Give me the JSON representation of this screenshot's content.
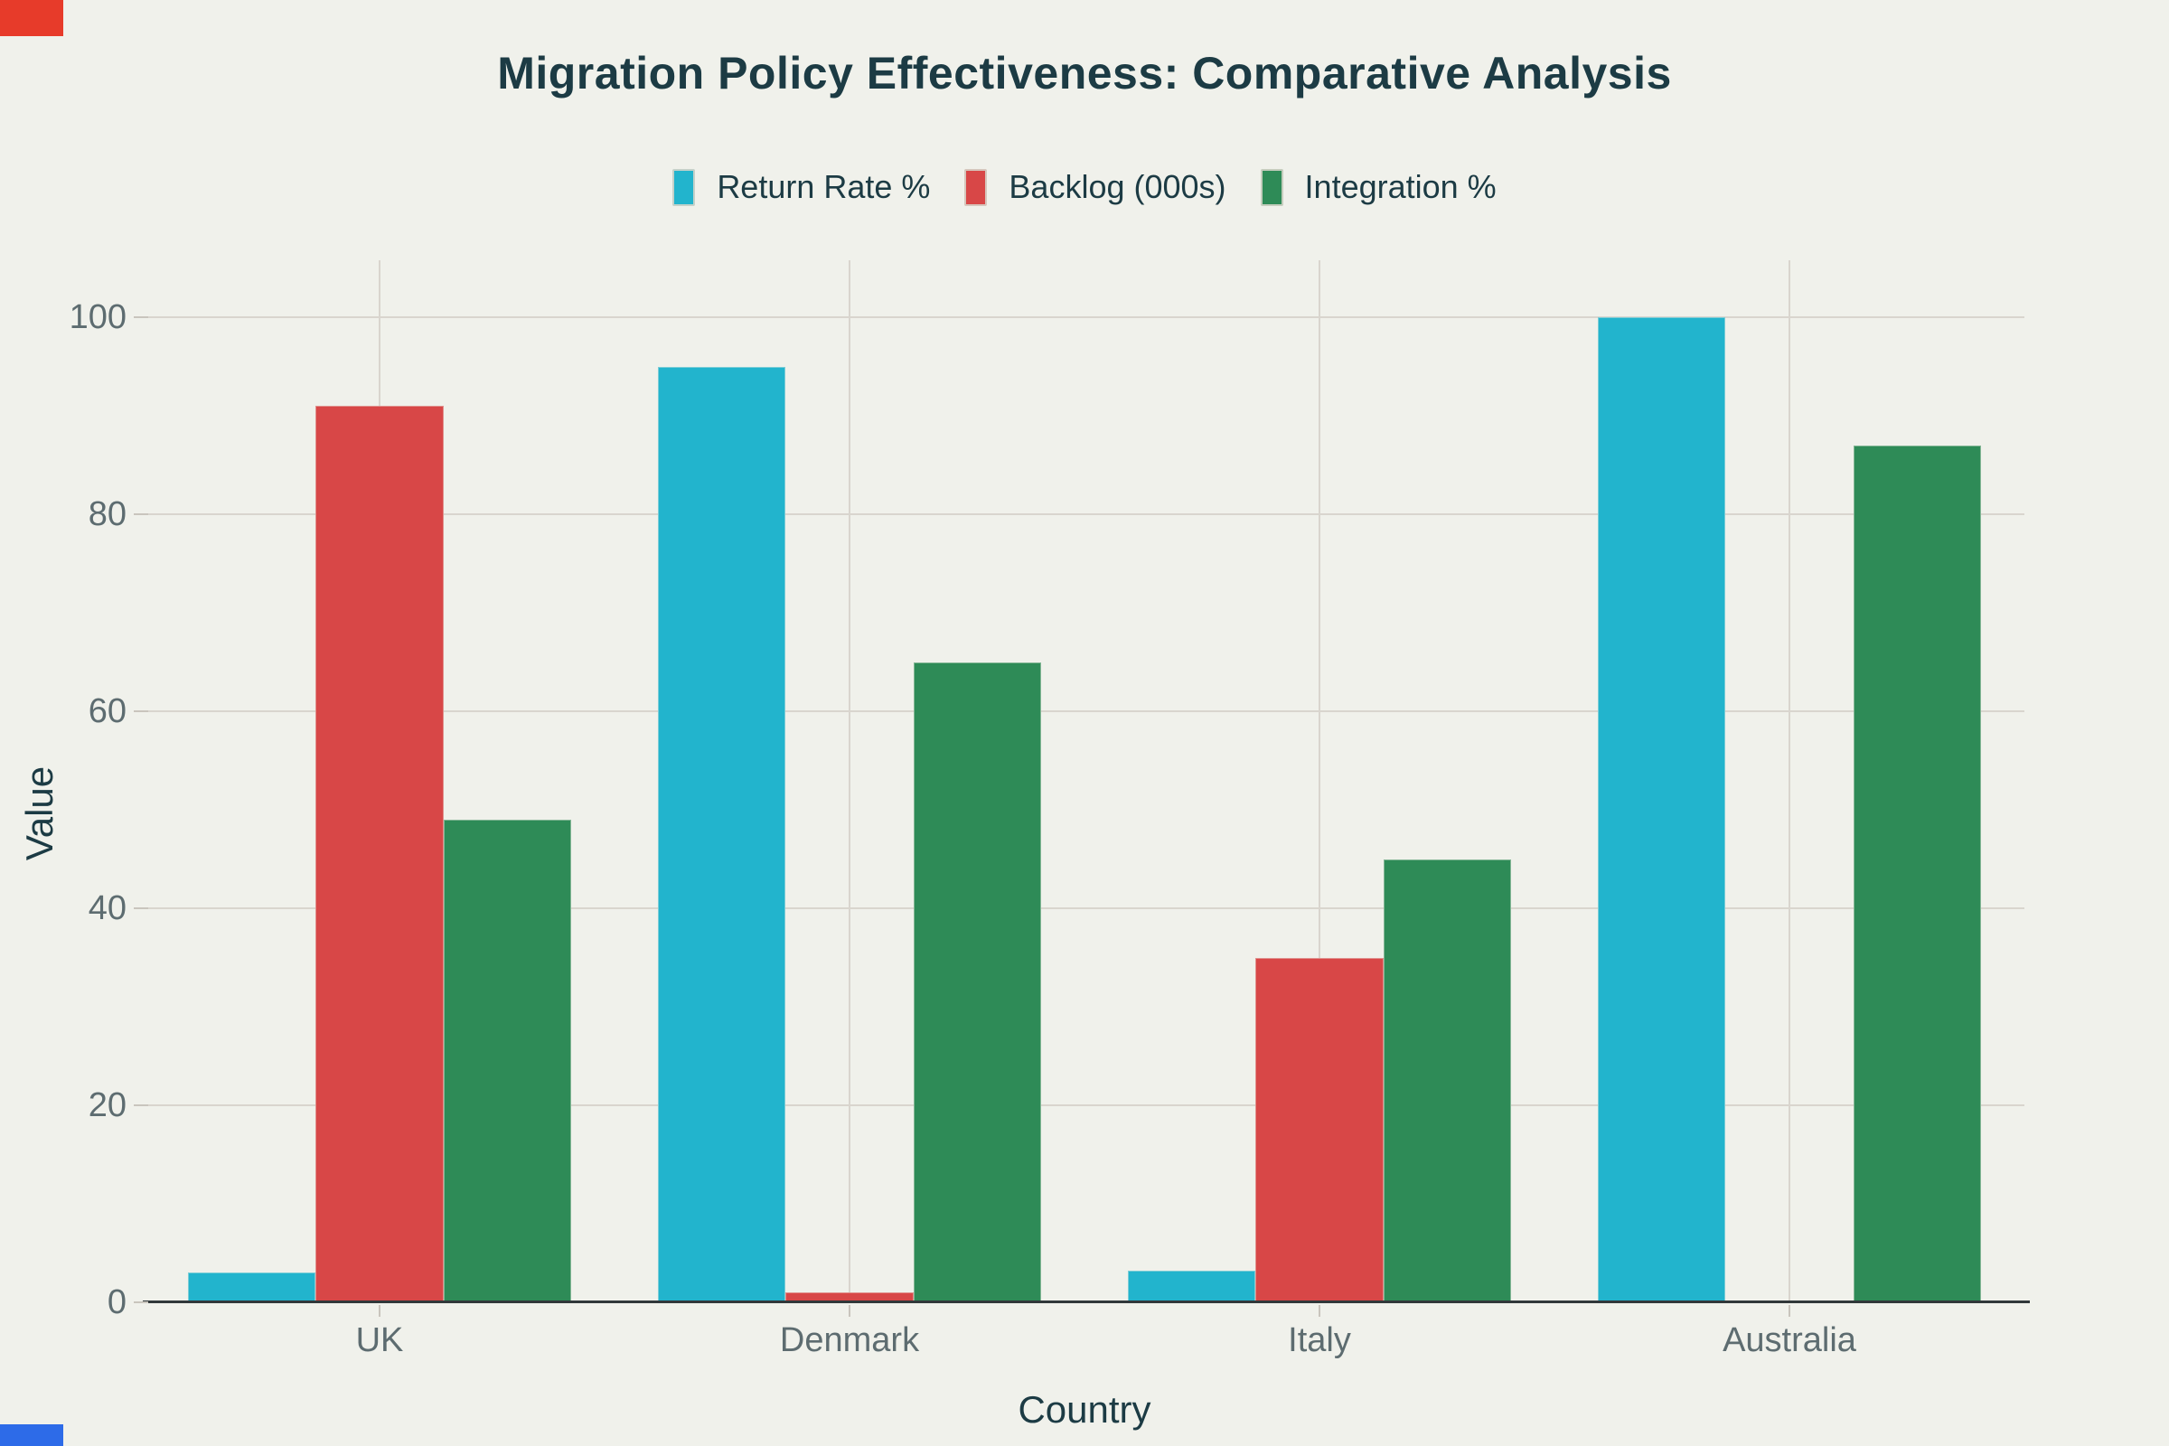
{
  "title": "Migration Policy Effectiveness: Comparative Analysis",
  "chart_data": {
    "type": "bar",
    "mode": "grouped",
    "title": "Migration Policy Effectiveness: Comparative Analysis",
    "xlabel": "Country",
    "ylabel": "Value",
    "categories": [
      "UK",
      "Denmark",
      "Italy",
      "Australia"
    ],
    "series": [
      {
        "name": "Return Rate %",
        "color": "#22b4cd",
        "values": [
          3,
          95,
          3.2,
          100
        ]
      },
      {
        "name": "Backlog (000s)",
        "color": "#d84747",
        "values": [
          91,
          1,
          35,
          0
        ]
      },
      {
        "name": "Integration %",
        "color": "#2e8b57",
        "values": [
          49,
          65,
          45,
          87
        ]
      }
    ],
    "yticks": [
      0,
      20,
      40,
      60,
      80,
      100
    ],
    "ylim": [
      0,
      105
    ],
    "grid": true,
    "legend_position": "top-center"
  },
  "colors": {
    "background": "#f0f1eb",
    "gridline": "#d9d5ce",
    "axis_line": "#31383a",
    "tick_mark": "#c9c5bd",
    "tick_label": "#5d6c70",
    "heading_text": "#1c3b44",
    "corner_top_left": "#e73b2a",
    "corner_bottom_left": "#2d6be8"
  }
}
